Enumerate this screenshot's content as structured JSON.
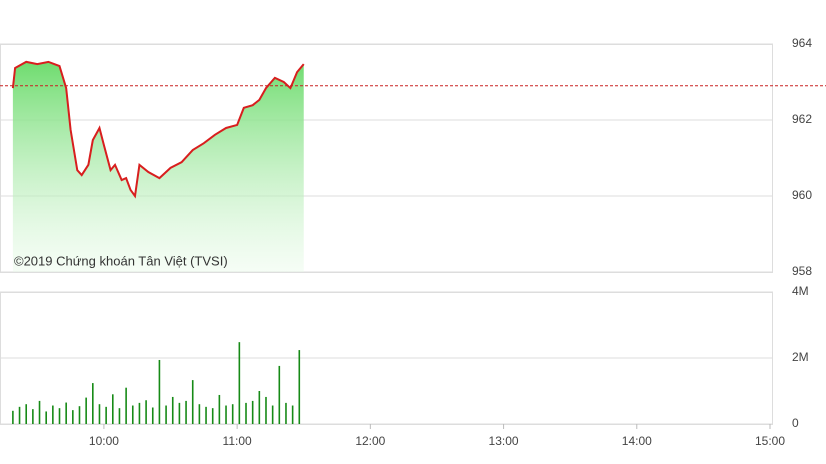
{
  "chart_data": [
    {
      "type": "line",
      "watermark": "©2019 Chứng khoán Tân Việt (TVSI)",
      "x": [
        "09:19",
        "09:20",
        "09:25",
        "09:30",
        "09:35",
        "09:40",
        "09:43",
        "09:45",
        "09:48",
        "09:50",
        "09:53",
        "09:55",
        "09:58",
        "10:00",
        "10:03",
        "10:05",
        "10:08",
        "10:10",
        "10:12",
        "10:14",
        "10:16",
        "10:20",
        "10:25",
        "10:30",
        "10:35",
        "10:40",
        "10:45",
        "10:50",
        "10:55",
        "11:00",
        "11:03",
        "11:07",
        "11:10",
        "11:13",
        "11:17",
        "11:21",
        "11:24",
        "11:27",
        "11:30"
      ],
      "series": [
        {
          "color": "#d81e1e",
          "fill": "#7be07b",
          "values": [
            962.84,
            963.37,
            963.53,
            963.47,
            963.53,
            963.42,
            962.84,
            961.74,
            960.68,
            960.55,
            960.82,
            961.47,
            961.79,
            961.34,
            960.68,
            960.82,
            960.42,
            960.47,
            960.16,
            960.0,
            960.82,
            960.63,
            960.47,
            960.74,
            960.89,
            961.21,
            961.39,
            961.61,
            961.79,
            961.87,
            962.32,
            962.39,
            962.53,
            962.84,
            963.11,
            963.0,
            962.84,
            963.26,
            963.47
          ]
        }
      ],
      "reference": {
        "value": 962.9,
        "color": "#c82020"
      },
      "xlim": [
        "09:15",
        "15:00"
      ],
      "ylim": [
        958,
        964
      ],
      "yticks": [
        958,
        960,
        962,
        964
      ],
      "grid": true
    },
    {
      "type": "bar",
      "x": [
        "09:19",
        "09:22",
        "09:25",
        "09:28",
        "09:31",
        "09:34",
        "09:37",
        "09:40",
        "09:43",
        "09:46",
        "09:49",
        "09:52",
        "09:55",
        "09:58",
        "10:01",
        "10:04",
        "10:07",
        "10:10",
        "10:13",
        "10:16",
        "10:19",
        "10:22",
        "10:25",
        "10:28",
        "10:31",
        "10:34",
        "10:37",
        "10:40",
        "10:43",
        "10:46",
        "10:49",
        "10:52",
        "10:55",
        "10:58",
        "11:01",
        "11:04",
        "11:07",
        "11:10",
        "11:13",
        "11:16",
        "11:19",
        "11:22",
        "11:25",
        "11:28"
      ],
      "series": [
        {
          "color": "#168a16",
          "values": [
            400000,
            520000,
            600000,
            450000,
            700000,
            380000,
            560000,
            480000,
            650000,
            420000,
            540000,
            800000,
            1240000,
            600000,
            520000,
            900000,
            480000,
            1100000,
            560000,
            640000,
            720000,
            500000,
            1940000,
            560000,
            820000,
            640000,
            700000,
            1330000,
            600000,
            520000,
            480000,
            880000,
            560000,
            600000,
            2480000,
            640000,
            700000,
            1000000,
            820000,
            560000,
            1760000,
            640000,
            560000,
            2240000
          ]
        }
      ],
      "xlim": [
        "09:15",
        "15:00"
      ],
      "xticks": [
        "10:00",
        "11:00",
        "12:00",
        "13:00",
        "14:00",
        "15:00"
      ],
      "ylim": [
        0,
        4000000
      ],
      "yticks": [
        0,
        {
          "value": 2000000,
          "label": "2M"
        },
        {
          "value": 4000000,
          "label": "4M"
        }
      ],
      "grid": true
    }
  ]
}
